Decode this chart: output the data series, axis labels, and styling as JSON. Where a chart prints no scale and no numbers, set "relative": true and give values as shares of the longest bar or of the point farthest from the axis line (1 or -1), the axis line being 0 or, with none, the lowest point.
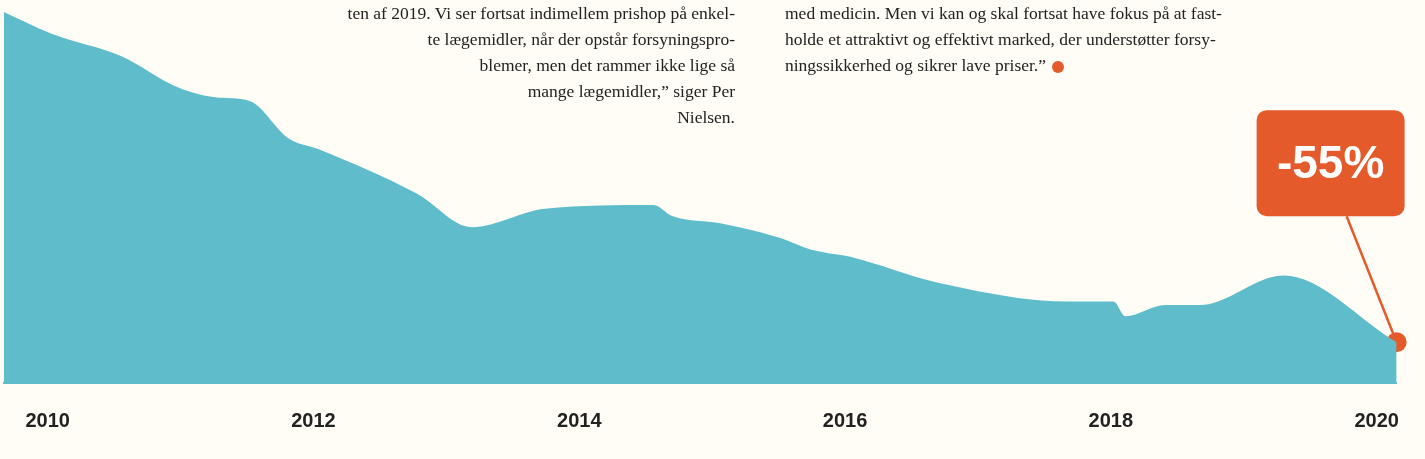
{
  "chart_data": {
    "type": "area",
    "relative": true,
    "x": [
      2009.67,
      2010.04,
      2010.56,
      2010.96,
      2011.26,
      2011.52,
      2011.81,
      2012.04,
      2012.78,
      2013.19,
      2013.74,
      2014.56,
      2014.7,
      2015.07,
      2015.52,
      2015.74,
      2016.04,
      2016.7,
      2017.67,
      2018.02,
      2018.11,
      2018.41,
      2018.67,
      2019.3,
      2020.15
    ],
    "series": [
      {
        "color": "#5fbccb",
        "values": [
          1,
          0.94,
          0.88,
          0.8,
          0.77,
          0.76,
          0.66,
          0.63,
          0.51,
          0.42,
          0.47,
          0.48,
          0.45,
          0.43,
          0.39,
          0.36,
          0.34,
          0.27,
          0.22,
          0.22,
          0.18,
          0.21,
          0.21,
          0.29,
          0.11
        ]
      }
    ],
    "xlim": [
      2009.67,
      2020.15
    ],
    "xticks": [
      2010,
      2012,
      2014,
      2016,
      2018,
      2020
    ],
    "grid": false,
    "legend": false,
    "marker": "none",
    "tick_labels": "x",
    "annotations": [
      "ten af 2019. Vi ser fortsat indimellem prishop på enkel-\nte lægemidler, når der opstår forsyningspro-\nblemer, men det rammer ikke lige så\nmange lægemidler,” siger Per\nNielsen.",
      "med medicin. Men vi kan og skal fortsat have fokus på at fast-\nholde et attraktivt og effektivt marked, der understøtter forsy-\nningssikkerhed og sikrer lave priser.”",
      {
        "text": "-55%",
        "x": 2020.15,
        "y": 0.11
      }
    ]
  }
}
